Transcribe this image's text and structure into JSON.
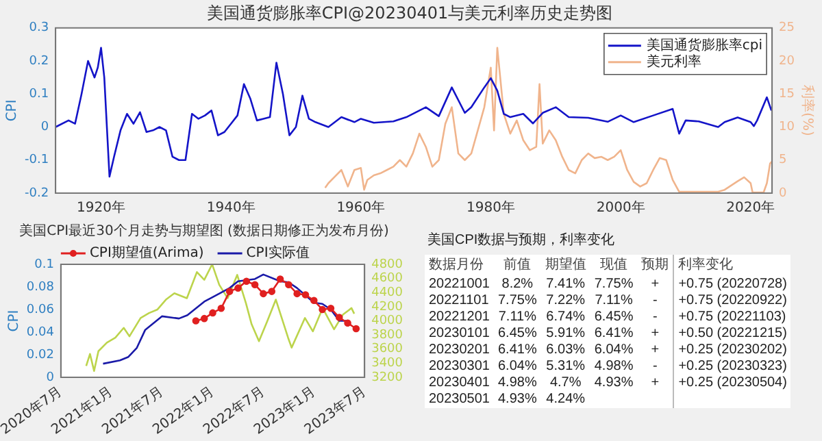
{
  "chart_data": [
    {
      "type": "line",
      "title": "美国通货膨胀率CPI@20230401与美元利率历史走势图",
      "ylabel": "CPI",
      "y2label": "利率(%)",
      "xlim": [
        1913,
        2023.3
      ],
      "xticks": [
        {
          "value": 1920,
          "label": "1920年"
        },
        {
          "value": 1940,
          "label": "1940年"
        },
        {
          "value": 1960,
          "label": "1960年"
        },
        {
          "value": 1980,
          "label": "1980年"
        },
        {
          "value": 2000,
          "label": "2000年"
        },
        {
          "value": 2020,
          "label": "2020年"
        }
      ],
      "ylim": [
        -0.2,
        0.3
      ],
      "yticks": [
        -0.2,
        -0.1,
        0,
        0.1,
        0.2,
        0.3
      ],
      "y2lim": [
        0,
        25
      ],
      "y2ticks": [
        0,
        5,
        10,
        15,
        20,
        25
      ],
      "legend": "top right",
      "marker": "none",
      "series": [
        {
          "name": "美国通货膨胀率cpi",
          "color": "#1414c8",
          "x": [
            1913,
            1915,
            1916,
            1917,
            1918,
            1919,
            1919.5,
            1920,
            1920.5,
            1921.3,
            1922,
            1923,
            1924,
            1925,
            1926,
            1927,
            1928,
            1929,
            1930,
            1931,
            1932,
            1933,
            1934,
            1935,
            1936,
            1937,
            1938,
            1939,
            1940,
            1941,
            1942,
            1943,
            1944,
            1945,
            1946,
            1947,
            1948,
            1949,
            1950,
            1951,
            1952,
            1953,
            1955,
            1957,
            1959,
            1960,
            1962,
            1965,
            1967,
            1970,
            1972,
            1974,
            1976,
            1977,
            1979,
            1980,
            1981,
            1982,
            1983,
            1985,
            1986.5,
            1988,
            1990,
            1992,
            1995,
            1998,
            2000,
            2002,
            2005,
            2008,
            2009,
            2010,
            2012,
            2015,
            2016,
            2018,
            2020,
            2020.5,
            2021,
            2022.5,
            2023.2
          ],
          "values": [
            0,
            0.02,
            0.01,
            0.1,
            0.2,
            0.15,
            0.18,
            0.24,
            0.15,
            -0.15,
            -0.09,
            -0.01,
            0.04,
            0.01,
            0.045,
            -0.015,
            -0.01,
            0,
            -0.01,
            -0.09,
            -0.1,
            -0.1,
            0.04,
            0.025,
            0.035,
            0.05,
            -0.025,
            -0.015,
            0.01,
            0.035,
            0.13,
            0.085,
            0.02,
            0.025,
            0.03,
            0.195,
            0.1,
            -0.025,
            0,
            0.095,
            0.025,
            0.015,
            0,
            0.03,
            0.015,
            0.025,
            0.013,
            0.017,
            0.03,
            0.06,
            0.033,
            0.12,
            0.043,
            0.06,
            0.12,
            0.148,
            0.11,
            0.04,
            0.03,
            0.04,
            0.011,
            0.043,
            0.06,
            0.03,
            0.028,
            0.016,
            0.035,
            0.015,
            0.035,
            0.055,
            -0.02,
            0.02,
            0.017,
            0,
            0.015,
            0.029,
            0.015,
            0.003,
            0.02,
            0.09,
            0.05
          ]
        },
        {
          "name": "美元利率",
          "color": "#f0b48c",
          "axis": "y2",
          "x": [
            1954.5,
            1955,
            1956,
            1957,
            1958,
            1959,
            1960,
            1960.5,
            1961,
            1962,
            1963,
            1964,
            1965,
            1966,
            1967,
            1968,
            1969,
            1970,
            1971,
            1972,
            1973,
            1974,
            1975,
            1976,
            1977,
            1978,
            1979,
            1980,
            1980.5,
            1981,
            1982,
            1983,
            1984,
            1985,
            1986,
            1987,
            1987.5,
            1988,
            1989,
            1990,
            1991,
            1992,
            1993,
            1994,
            1995,
            1996,
            1997,
            1998,
            1999,
            2000,
            2001,
            2002,
            2003,
            2004,
            2005,
            2006,
            2007,
            2008,
            2009,
            2015,
            2016,
            2018,
            2019,
            2020,
            2020.3,
            2022,
            2022.5,
            2023,
            2023.3
          ],
          "values": [
            0.8,
            1.5,
            2.5,
            3.5,
            1,
            3.5,
            3.8,
            0.5,
            2,
            2.7,
            3,
            3.5,
            4,
            5,
            4,
            6,
            9,
            7,
            4,
            5,
            10.5,
            13,
            6,
            5,
            6,
            9.5,
            13,
            19,
            9.5,
            22,
            12,
            9,
            11,
            8,
            6.5,
            7,
            16.5,
            7.5,
            9.5,
            8,
            5.5,
            3.5,
            3,
            5,
            6,
            5.3,
            5.5,
            5,
            5.5,
            6.5,
            3.5,
            1.7,
            1,
            1.5,
            3.5,
            5.3,
            5,
            2,
            0.2,
            0.2,
            0.5,
            1.8,
            2.4,
            1.5,
            0.1,
            0.1,
            1.5,
            4.5,
            4.8
          ]
        }
      ]
    },
    {
      "type": "line",
      "title": "美国CPI最近30个月走势与期望图 (数据日期修正为发布月份)",
      "ylabel": "CPI",
      "xlim": [
        "2020-07",
        "2023-07"
      ],
      "xticks": [
        {
          "value": "2020-07",
          "label": "2020年7月"
        },
        {
          "value": "2021-01",
          "label": "2021年1月"
        },
        {
          "value": "2021-07",
          "label": "2021年7月"
        },
        {
          "value": "2022-01",
          "label": "2022年1月"
        },
        {
          "value": "2022-07",
          "label": "2022年7月"
        },
        {
          "value": "2023-01",
          "label": "2023年1月"
        },
        {
          "value": "2023-07",
          "label": "2023年7月"
        }
      ],
      "ylim": [
        0,
        0.1
      ],
      "yticks": [
        0,
        0.02,
        0.04,
        0.06,
        0.08,
        0.1
      ],
      "y2lim": [
        3200,
        4800
      ],
      "y2ticks": [
        3200,
        3400,
        3600,
        3800,
        4000,
        4200,
        4400,
        4600,
        4800
      ],
      "legend": "top left",
      "series": [
        {
          "name": "CPI期望值(Arima)",
          "color": "#e02020",
          "marker": "circle",
          "x": [
            "2021-11",
            "2021-12",
            "2022-01",
            "2022-02",
            "2022-03",
            "2022-04",
            "2022-05",
            "2022-06",
            "2022-07",
            "2022-08",
            "2022-09",
            "2022-10",
            "2022-11",
            "2022-12",
            "2023-01",
            "2023-02",
            "2023-03",
            "2023-04",
            "2023-05",
            "2023-06"
          ],
          "values": [
            0.05,
            0.052,
            0.057,
            0.061,
            0.076,
            0.079,
            0.085,
            0.082,
            0.074,
            0.076,
            0.087,
            0.082,
            0.074,
            0.073,
            0.068,
            0.06,
            0.061,
            0.053,
            0.048,
            0.043
          ]
        },
        {
          "name": "CPI实际值",
          "color": "#1a1aa8",
          "marker": "none",
          "x": [
            "2020-12",
            "2021-02",
            "2021-03",
            "2021-04",
            "2021-05",
            "2021-07",
            "2021-09",
            "2021-10",
            "2021-12",
            "2022-01",
            "2022-03",
            "2022-04",
            "2022-06",
            "2022-07",
            "2022-09",
            "2022-10",
            "2022-11",
            "2023-01",
            "2023-02",
            "2023-03",
            "2023-04",
            "2023-05"
          ],
          "values": [
            0.012,
            0.015,
            0.018,
            0.026,
            0.042,
            0.054,
            0.052,
            0.055,
            0.067,
            0.071,
            0.079,
            0.085,
            0.087,
            0.091,
            0.085,
            0.084,
            0.079,
            0.066,
            0.065,
            0.06,
            0.05,
            0.05
          ]
        },
        {
          "color": "#bcd44c",
          "marker": "none",
          "axis": "y2",
          "x": [
            "2020-10-01",
            "2020-10-15",
            "2020-10-30",
            "2020-11-15",
            "2020-12-15",
            "2021-01-15",
            "2021-02-15",
            "2021-03-05",
            "2021-04-15",
            "2021-05-15",
            "2021-06-15",
            "2021-07-15",
            "2021-08-15",
            "2021-09-30",
            "2021-11-05",
            "2021-12-01",
            "2021-12-30",
            "2022-01-25",
            "2022-02-25",
            "2022-03-29",
            "2022-04-30",
            "2022-05-20",
            "2022-06-16",
            "2022-07-15",
            "2022-08-16",
            "2022-09-30",
            "2022-10-12",
            "2022-11-30",
            "2022-12-28",
            "2023-02-02",
            "2023-03-13",
            "2023-04-15",
            "2023-05-15",
            "2023-05-25"
          ],
          "values": [
            3360,
            3530,
            3290,
            3570,
            3690,
            3760,
            3900,
            3780,
            4040,
            4110,
            4160,
            4300,
            4390,
            4320,
            4690,
            4580,
            4800,
            4510,
            4320,
            4650,
            4250,
            3950,
            3710,
            3990,
            4300,
            3760,
            3620,
            4040,
            3850,
            4180,
            3880,
            4090,
            4180,
            4100
          ]
        }
      ]
    },
    {
      "type": "other",
      "title": "美国CPI数据与预期，利率变化",
      "categories": [
        "数据月份",
        "前值",
        "期望值",
        "现值",
        "预期",
        "利率变化"
      ],
      "cell_labels": [
        [
          "20221001",
          "8.2%",
          "7.41%",
          "7.75%",
          "+",
          "+0.75 (20220728)"
        ],
        [
          "20221101",
          "7.75%",
          "7.22%",
          "7.11%",
          "-",
          "+0.75 (20220922)"
        ],
        [
          "20221201",
          "7.11%",
          "6.74%",
          "6.45%",
          "-",
          "+0.75 (20221103)"
        ],
        [
          "20230101",
          "6.45%",
          "5.91%",
          "6.41%",
          "+",
          "+0.50 (20221215)"
        ],
        [
          "20230201",
          "6.41%",
          "6.03%",
          "6.04%",
          "+",
          "+0.25 (20230202)"
        ],
        [
          "20230301",
          "6.04%",
          "5.31%",
          "4.98%",
          "-",
          "+0.25 (20230323)"
        ],
        [
          "20230401",
          "4.98%",
          "4.7%",
          "4.93%",
          "+",
          "+0.25 (20230504)"
        ],
        [
          "20230501",
          "4.93%",
          "4.24%",
          null,
          null,
          null
        ]
      ]
    }
  ]
}
